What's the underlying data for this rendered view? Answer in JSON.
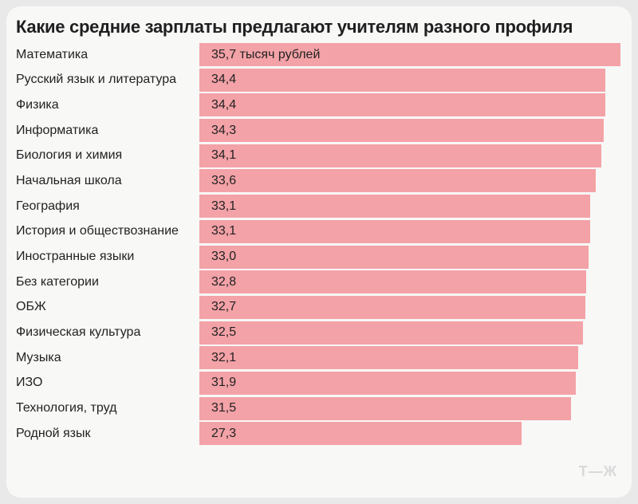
{
  "title": "Какие средние зарплаты предлагают учителям разного профиля",
  "logo_text": "Т—Ж",
  "colors": {
    "bar": "#F3A2A7",
    "card_bg": "#F8F8F7",
    "page_bg": "#E9E9E9",
    "text": "#222222",
    "title_text": "#1F1F1F",
    "logo": "#D9D9D9"
  },
  "chart_data": {
    "type": "bar",
    "orientation": "horizontal",
    "title": "Какие средние зарплаты предлагают учителям разного профиля",
    "unit": "тысяч рублей",
    "xlabel": "",
    "ylabel": "",
    "xlim": [
      0,
      35.7
    ],
    "grid": false,
    "legend": false,
    "categories": [
      "Математика",
      "Русский язык и литература",
      "Физика",
      "Информатика",
      "Биология и химия",
      "Начальная школа",
      "География",
      "История и обществознание",
      "Иностранные языки",
      "Без категории",
      "ОБЖ",
      "Физическая культура",
      "Музыка",
      "ИЗО",
      "Технология, труд",
      "Родной язык"
    ],
    "values": [
      35.7,
      34.4,
      34.4,
      34.3,
      34.1,
      33.6,
      33.1,
      33.1,
      33.0,
      32.8,
      32.7,
      32.5,
      32.1,
      31.9,
      31.5,
      27.3
    ],
    "value_labels": [
      "35,7 тысяч рублей",
      "34,4",
      "34,4",
      "34,3",
      "34,1",
      "33,6",
      "33,1",
      "33,1",
      "33,0",
      "32,8",
      "32,7",
      "32,5",
      "32,1",
      "31,9",
      "31,5",
      "27,3"
    ]
  }
}
